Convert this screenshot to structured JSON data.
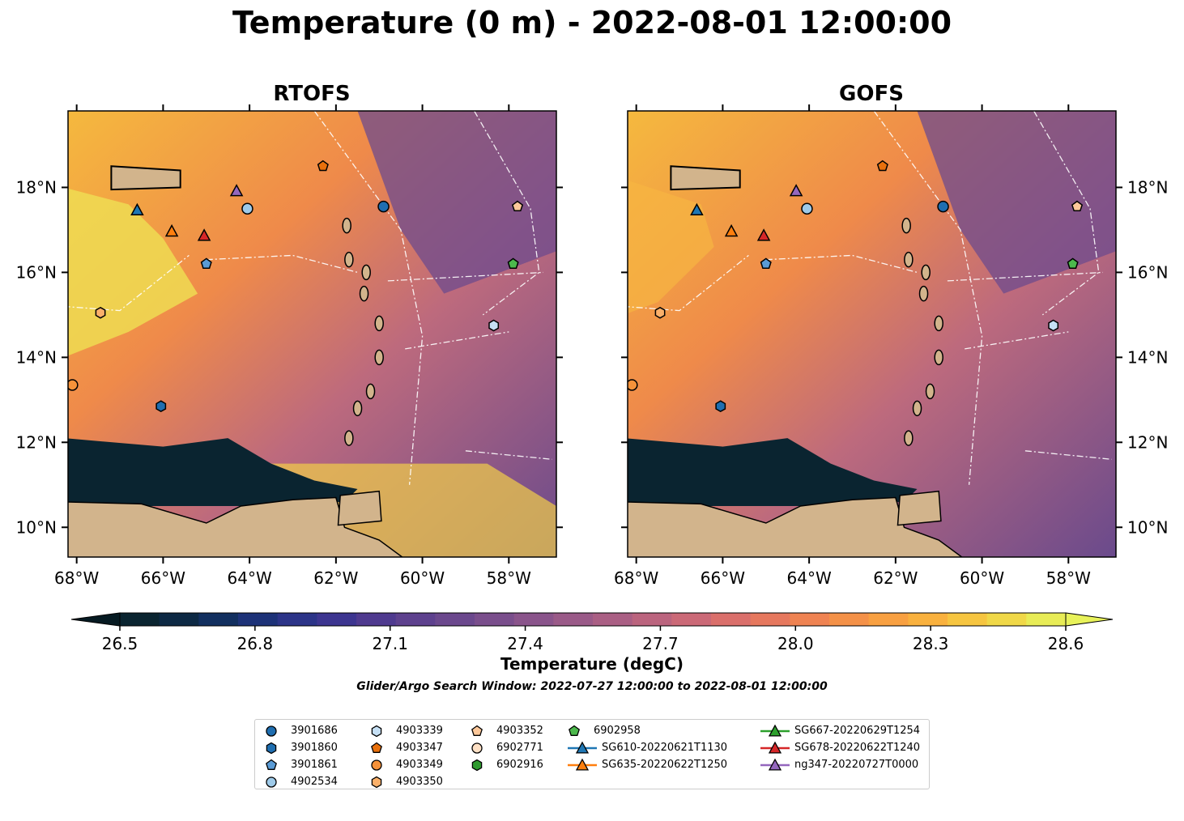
{
  "figure": {
    "title": "Temperature (0 m) - 2022-08-01 12:00:00",
    "panels": [
      {
        "title": "RTOFS"
      },
      {
        "title": "GOFS"
      }
    ],
    "lon_ticks": [
      "68°W",
      "66°W",
      "64°W",
      "62°W",
      "60°W",
      "58°W"
    ],
    "lat_ticks": [
      "18°N",
      "16°N",
      "14°N",
      "12°N",
      "10°N"
    ],
    "extent": {
      "lon": [
        -68.2,
        -56.9
      ],
      "lat": [
        9.3,
        19.8
      ]
    }
  },
  "colorbar": {
    "label": "Temperature (degC)",
    "ticks": [
      "26.5",
      "26.8",
      "27.1",
      "27.4",
      "27.7",
      "28.0",
      "28.3",
      "28.6"
    ],
    "colors": [
      "#0a2430",
      "#0d2944",
      "#122f5f",
      "#1d3278",
      "#2c3488",
      "#3d3590",
      "#4f3a8f",
      "#5e418e",
      "#6b488d",
      "#7a4e8c",
      "#8a548b",
      "#9a5a88",
      "#aa5f84",
      "#bb647e",
      "#cb6977",
      "#da6f6b",
      "#e6785e",
      "#ef8352",
      "#f49148",
      "#f8a041",
      "#f9b13e",
      "#f6c540",
      "#f0d848",
      "#e8ec56"
    ]
  },
  "search_window": "Glider/Argo Search Window: 2022-07-27 12:00:00 to 2022-08-01 12:00:00",
  "legend": {
    "items": [
      {
        "label": "3901686",
        "marker": "circle",
        "color": "#1f6eb0",
        "col": 0,
        "row": 0
      },
      {
        "label": "3901860",
        "marker": "hexagon",
        "color": "#1f6eb0",
        "col": 0,
        "row": 1
      },
      {
        "label": "3901861",
        "marker": "pentagon",
        "color": "#5a9bd5",
        "col": 0,
        "row": 2
      },
      {
        "label": "4902534",
        "marker": "circle",
        "color": "#9ecae9",
        "col": 0,
        "row": 3
      },
      {
        "label": "4903339",
        "marker": "hexagon",
        "color": "#c6e0f5",
        "col": 1,
        "row": 0
      },
      {
        "label": "4903347",
        "marker": "pentagon",
        "color": "#e8700c",
        "col": 1,
        "row": 1
      },
      {
        "label": "4903349",
        "marker": "circle",
        "color": "#f5923a",
        "col": 1,
        "row": 2
      },
      {
        "label": "4903350",
        "marker": "hexagon",
        "color": "#fab06a",
        "col": 1,
        "row": 3
      },
      {
        "label": "4903352",
        "marker": "pentagon",
        "color": "#fdc89a",
        "col": 2,
        "row": 0
      },
      {
        "label": "6902771",
        "marker": "circle",
        "color": "#fde0c5",
        "col": 2,
        "row": 1
      },
      {
        "label": "6902916",
        "marker": "hexagon",
        "color": "#2e9a2e",
        "col": 2,
        "row": 2
      },
      {
        "label": "6902958",
        "marker": "pentagon",
        "color": "#4cb84c",
        "col": 3,
        "row": 0
      },
      {
        "label": "SG610-20220621T1130",
        "marker": "triangle",
        "color": "#1f77b4",
        "line": true,
        "col": 3,
        "row": 1
      },
      {
        "label": "SG635-20220622T1250",
        "marker": "triangle",
        "color": "#ff7f0e",
        "line": true,
        "col": 3,
        "row": 2
      },
      {
        "label": "SG667-20220629T1254",
        "marker": "triangle",
        "color": "#2ca02c",
        "line": true,
        "col": 4,
        "row": 0
      },
      {
        "label": "SG678-20220622T1240",
        "marker": "triangle",
        "color": "#d62728",
        "line": true,
        "col": 4,
        "row": 1
      },
      {
        "label": "ng347-20220727T0000",
        "marker": "triangle",
        "color": "#9467bd",
        "line": true,
        "col": 4,
        "row": 2
      }
    ]
  },
  "platforms": [
    {
      "id": "3901686",
      "lon": -60.9,
      "lat": 17.55
    },
    {
      "id": "3901860",
      "lon": -66.05,
      "lat": 12.85
    },
    {
      "id": "3901861",
      "lon": -65.0,
      "lat": 16.2
    },
    {
      "id": "4902534",
      "lon": -64.05,
      "lat": 17.5
    },
    {
      "id": "4903339",
      "lon": -58.35,
      "lat": 14.75
    },
    {
      "id": "4903347",
      "lon": -62.3,
      "lat": 18.5
    },
    {
      "id": "4903349",
      "lon": -68.1,
      "lat": 13.35
    },
    {
      "id": "4903350",
      "lon": -67.45,
      "lat": 15.05
    },
    {
      "id": "4903352",
      "lon": -57.8,
      "lat": 17.55
    },
    {
      "id": "6902958",
      "lon": -57.9,
      "lat": 16.2
    },
    {
      "id": "SG610-20220621T1130",
      "lon": -66.6,
      "lat": 17.45
    },
    {
      "id": "SG635-20220622T1250",
      "lon": -65.8,
      "lat": 16.95
    },
    {
      "id": "SG678-20220622T1240",
      "lon": -65.05,
      "lat": 16.85
    },
    {
      "id": "ng347-20220727T0000",
      "lon": -64.3,
      "lat": 17.9
    }
  ]
}
